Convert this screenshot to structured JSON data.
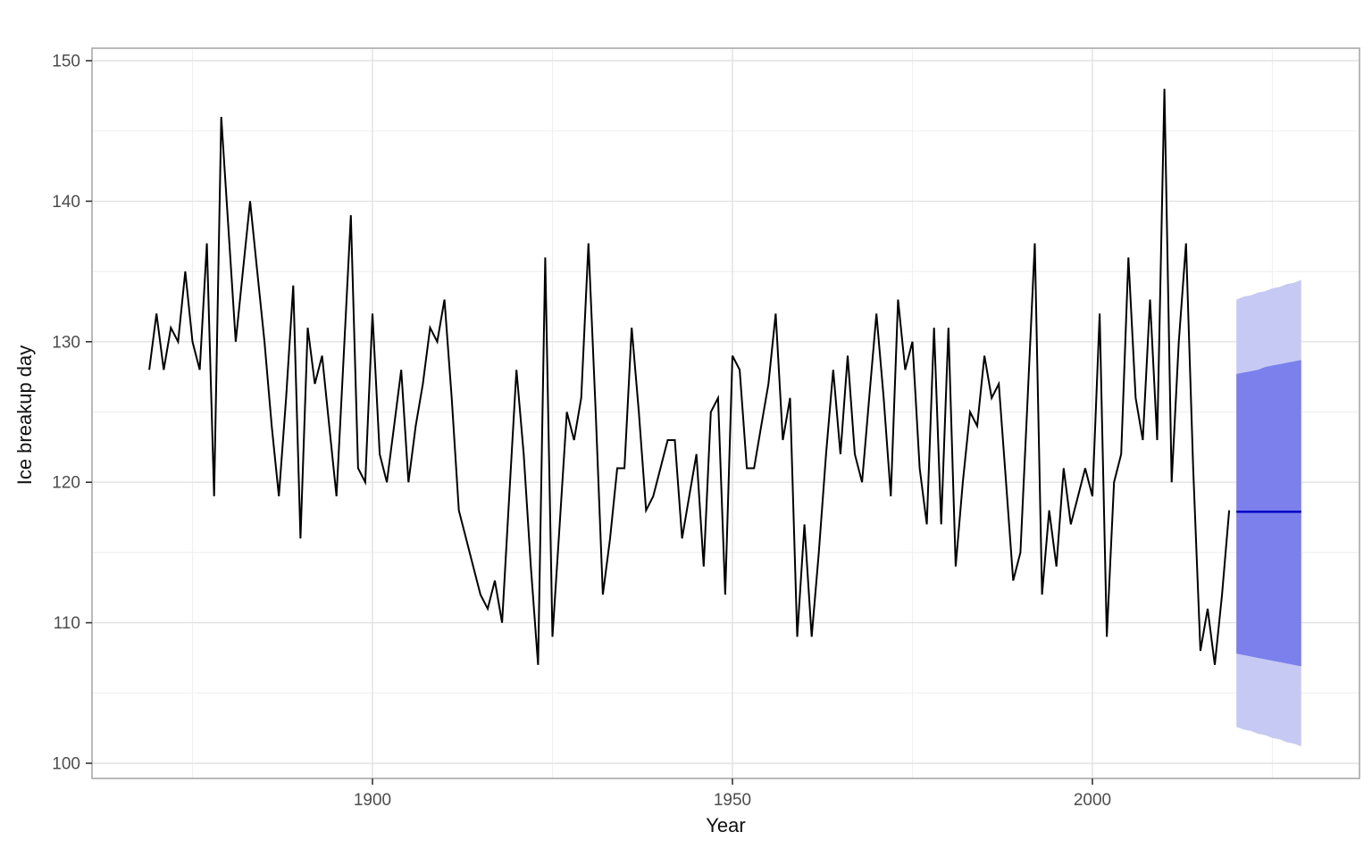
{
  "chart_data": {
    "type": "line",
    "title": "",
    "xlabel": "Year",
    "ylabel": "Ice breakup day",
    "legend": "none",
    "grid": "on",
    "xlim": [
      1861,
      2037
    ],
    "ylim": [
      98.9,
      150.9
    ],
    "x_ticks": [
      1900,
      1950,
      2000
    ],
    "x_minor_ticks": [
      1875,
      1925,
      1975,
      2025
    ],
    "y_ticks": [
      100,
      110,
      120,
      130,
      140,
      150
    ],
    "y_minor_ticks": [
      105,
      115,
      125,
      135,
      145
    ],
    "series": [
      {
        "name": "Ice breakup day (observed)",
        "x_start": 1869,
        "x": [
          1869,
          1870,
          1871,
          1872,
          1873,
          1874,
          1875,
          1876,
          1877,
          1878,
          1879,
          1880,
          1881,
          1882,
          1883,
          1884,
          1885,
          1886,
          1887,
          1888,
          1889,
          1890,
          1891,
          1892,
          1893,
          1894,
          1895,
          1896,
          1897,
          1898,
          1899,
          1900,
          1901,
          1902,
          1903,
          1904,
          1905,
          1906,
          1907,
          1908,
          1909,
          1910,
          1911,
          1912,
          1913,
          1914,
          1915,
          1916,
          1917,
          1918,
          1919,
          1920,
          1921,
          1922,
          1923,
          1924,
          1925,
          1926,
          1927,
          1928,
          1929,
          1930,
          1931,
          1932,
          1933,
          1934,
          1935,
          1936,
          1937,
          1938,
          1939,
          1940,
          1941,
          1942,
          1943,
          1944,
          1945,
          1946,
          1947,
          1948,
          1949,
          1950,
          1951,
          1952,
          1953,
          1954,
          1955,
          1956,
          1957,
          1958,
          1959,
          1960,
          1961,
          1962,
          1963,
          1964,
          1965,
          1966,
          1967,
          1968,
          1969,
          1970,
          1971,
          1972,
          1973,
          1974,
          1975,
          1976,
          1977,
          1978,
          1979,
          1980,
          1981,
          1982,
          1983,
          1984,
          1985,
          1986,
          1987,
          1988,
          1989,
          1990,
          1991,
          1992,
          1993,
          1994,
          1995,
          1996,
          1997,
          1998,
          1999,
          2000,
          2001,
          2002,
          2003,
          2004,
          2005,
          2006,
          2007,
          2008,
          2009,
          2010,
          2011,
          2012,
          2013,
          2014,
          2015,
          2016,
          2017,
          2018,
          2019
        ],
        "values": [
          128,
          132,
          128,
          131,
          130,
          135,
          130,
          128,
          137,
          119,
          146,
          138,
          130,
          135,
          140,
          135,
          130,
          124,
          119,
          126,
          134,
          116,
          131,
          127,
          129,
          124,
          119,
          129,
          139,
          121,
          120,
          132,
          122,
          120,
          124,
          128,
          120,
          124,
          127,
          131,
          130,
          133,
          126,
          118,
          116,
          114,
          112,
          111,
          113,
          110,
          119,
          128,
          122,
          114,
          107,
          136,
          109,
          117,
          125,
          123,
          126,
          137,
          125,
          112,
          116,
          121,
          121,
          131,
          125,
          118,
          119,
          121,
          123,
          123,
          116,
          119,
          122,
          114,
          125,
          126,
          112,
          129,
          128,
          121,
          121,
          124,
          127,
          132,
          123,
          126,
          109,
          117,
          109,
          115,
          122,
          128,
          122,
          129,
          122,
          120,
          126,
          132,
          126,
          119,
          133,
          128,
          130,
          121,
          117,
          131,
          117,
          131,
          114,
          120,
          125,
          124,
          129,
          126,
          127,
          120,
          113,
          115,
          126,
          137,
          112,
          118,
          114,
          121,
          117,
          119,
          121,
          119,
          132,
          109,
          120,
          122,
          136,
          126,
          123,
          133,
          123,
          148,
          120,
          130,
          137,
          121,
          108,
          111,
          107,
          112,
          118
        ]
      }
    ],
    "forecast": {
      "years": [
        2020,
        2021,
        2022,
        2023,
        2024,
        2025,
        2026,
        2027,
        2028,
        2029
      ],
      "mean": [
        117.9,
        117.9,
        117.9,
        117.9,
        117.9,
        117.9,
        117.9,
        117.9,
        117.9,
        117.9
      ],
      "lo80": [
        107.8,
        107.7,
        107.6,
        107.5,
        107.4,
        107.3,
        107.2,
        107.1,
        107.0,
        106.9
      ],
      "hi80": [
        127.7,
        127.8,
        127.9,
        128.0,
        128.2,
        128.3,
        128.4,
        128.5,
        128.6,
        128.7
      ],
      "lo95": [
        102.6,
        102.4,
        102.3,
        102.1,
        102.0,
        101.8,
        101.7,
        101.5,
        101.4,
        101.2
      ],
      "hi95": [
        133.0,
        133.2,
        133.3,
        133.5,
        133.6,
        133.8,
        133.9,
        134.1,
        134.2,
        134.4
      ]
    },
    "colors": {
      "observed_line": "#000000",
      "forecast_mean": "#0000C8",
      "band_80": "#7B80EC",
      "band_95": "#C6C9F3",
      "grid_major": "#E2E2E2",
      "grid_minor": "#F0F0F0",
      "panel_border": "#A9A9A9",
      "tick_mark": "#333333",
      "tick_label": "#4D4D4D"
    }
  }
}
